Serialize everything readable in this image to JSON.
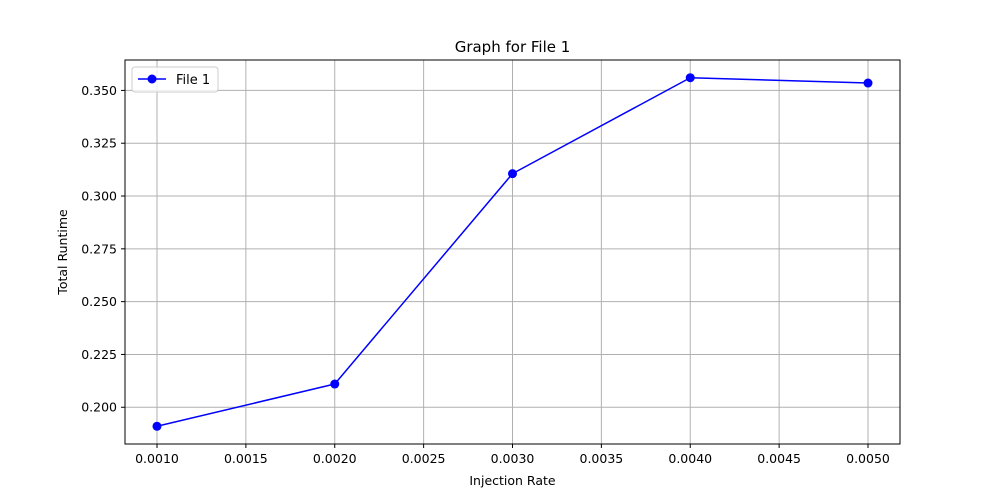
{
  "chart_data": {
    "type": "line",
    "title": "Graph for File 1",
    "xlabel": "Injection Rate",
    "ylabel": "Total Runtime",
    "xlim": [
      0.00082,
      0.00518
    ],
    "ylim": [
      0.1826,
      0.3644
    ],
    "x_ticks": [
      "0.0010",
      "0.0015",
      "0.0020",
      "0.0025",
      "0.0030",
      "0.0035",
      "0.0040",
      "0.0045",
      "0.0050"
    ],
    "y_ticks": [
      "0.200",
      "0.225",
      "0.250",
      "0.275",
      "0.300",
      "0.325",
      "0.350"
    ],
    "grid": true,
    "legend_position": "upper-left",
    "series": [
      {
        "name": "File 1",
        "color": "#0000ff",
        "marker": "circle",
        "x": [
          0.001,
          0.002,
          0.003,
          0.004,
          0.005
        ],
        "y": [
          0.191,
          0.211,
          0.3106,
          0.356,
          0.3535
        ]
      }
    ]
  }
}
